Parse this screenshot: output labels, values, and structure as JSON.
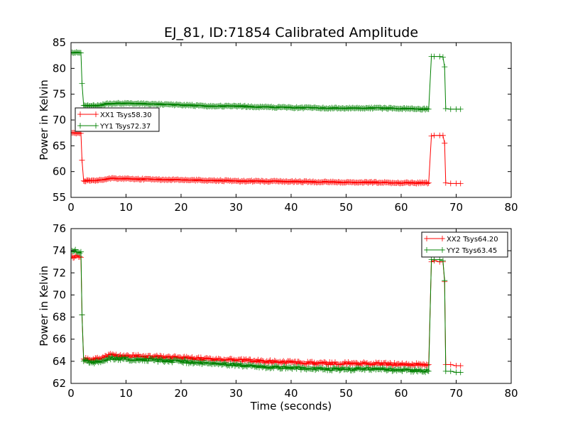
{
  "chart_data": [
    {
      "type": "line",
      "title": "EJ_81, ID:71854 Calibrated Amplitude",
      "xlabel": "",
      "ylabel": "Power in Kelvin",
      "xlim": [
        0,
        80
      ],
      "ylim": [
        55,
        85
      ],
      "xticks": [
        "0",
        "10",
        "20",
        "30",
        "40",
        "50",
        "60",
        "70",
        "80"
      ],
      "yticks": [
        "55",
        "60",
        "65",
        "70",
        "75",
        "80",
        "85"
      ],
      "grid": false,
      "legend_position": "center-left",
      "series": [
        {
          "name": "XX1 Tsys58.30",
          "color": "#ff0000",
          "marker": "+",
          "points": [
            [
              0.2,
              67.5
            ],
            [
              1.8,
              67.4
            ],
            [
              2.0,
              62.2
            ],
            [
              2.3,
              58.2
            ],
            [
              5,
              58.3
            ],
            [
              7,
              58.7
            ],
            [
              10,
              58.6
            ],
            [
              15,
              58.5
            ],
            [
              20,
              58.4
            ],
            [
              25,
              58.3
            ],
            [
              30,
              58.2
            ],
            [
              35,
              58.1
            ],
            [
              40,
              58.1
            ],
            [
              45,
              58.0
            ],
            [
              50,
              57.9
            ],
            [
              55,
              57.9
            ],
            [
              60,
              57.8
            ],
            [
              65.0,
              57.8
            ],
            [
              65.5,
              66.9
            ],
            [
              66,
              67.0
            ],
            [
              67,
              67.0
            ],
            [
              67.6,
              67.0
            ],
            [
              67.9,
              65.5
            ],
            [
              68.1,
              57.8
            ],
            [
              69,
              57.7
            ],
            [
              70,
              57.7
            ],
            [
              70.8,
              57.7
            ]
          ]
        },
        {
          "name": "YY1 Tsys72.37",
          "color": "#008000",
          "marker": "+",
          "points": [
            [
              0.2,
              83.1
            ],
            [
              1.8,
              83.0
            ],
            [
              2.0,
              77.1
            ],
            [
              2.3,
              72.8
            ],
            [
              5,
              72.8
            ],
            [
              7,
              73.2
            ],
            [
              10,
              73.2
            ],
            [
              15,
              73.1
            ],
            [
              20,
              72.9
            ],
            [
              25,
              72.7
            ],
            [
              30,
              72.7
            ],
            [
              35,
              72.5
            ],
            [
              40,
              72.4
            ],
            [
              45,
              72.3
            ],
            [
              50,
              72.3
            ],
            [
              55,
              72.3
            ],
            [
              60,
              72.2
            ],
            [
              65.0,
              72.1
            ],
            [
              65.5,
              82.3
            ],
            [
              66,
              82.3
            ],
            [
              67,
              82.3
            ],
            [
              67.6,
              82.2
            ],
            [
              67.9,
              80.3
            ],
            [
              68.1,
              72.2
            ],
            [
              69,
              72.1
            ],
            [
              70,
              72.1
            ],
            [
              70.8,
              72.1
            ]
          ]
        }
      ]
    },
    {
      "type": "line",
      "title": "",
      "xlabel": "Time (seconds)",
      "ylabel": "Power in Kelvin",
      "xlim": [
        0,
        80
      ],
      "ylim": [
        62,
        76
      ],
      "xticks": [
        "0",
        "10",
        "20",
        "30",
        "40",
        "50",
        "60",
        "70",
        "80"
      ],
      "yticks": [
        "62",
        "64",
        "66",
        "68",
        "70",
        "72",
        "74",
        "76"
      ],
      "grid": false,
      "legend_position": "top-right",
      "series": [
        {
          "name": "XX2 Tsys64.20",
          "color": "#ff0000",
          "marker": "+",
          "points": [
            [
              0.2,
              73.5
            ],
            [
              1.8,
              73.4
            ],
            [
              2.0,
              68.2
            ],
            [
              2.3,
              64.2
            ],
            [
              5,
              64.2
            ],
            [
              7,
              64.6
            ],
            [
              10,
              64.5
            ],
            [
              15,
              64.4
            ],
            [
              20,
              64.3
            ],
            [
              25,
              64.2
            ],
            [
              30,
              64.1
            ],
            [
              35,
              64.0
            ],
            [
              40,
              63.9
            ],
            [
              45,
              63.8
            ],
            [
              50,
              63.8
            ],
            [
              55,
              63.8
            ],
            [
              60,
              63.7
            ],
            [
              65.0,
              63.7
            ],
            [
              65.5,
              73.0
            ],
            [
              66,
              73.1
            ],
            [
              67,
              73.0
            ],
            [
              67.6,
              73.0
            ],
            [
              67.9,
              71.2
            ],
            [
              68.1,
              63.7
            ],
            [
              69,
              63.7
            ],
            [
              70,
              63.6
            ],
            [
              70.8,
              63.6
            ]
          ]
        },
        {
          "name": "YY2 Tsys63.45",
          "color": "#008000",
          "marker": "+",
          "points": [
            [
              0.2,
              74.0
            ],
            [
              1.8,
              73.9
            ],
            [
              2.0,
              68.2
            ],
            [
              2.3,
              64.0
            ],
            [
              5,
              63.9
            ],
            [
              7,
              64.3
            ],
            [
              10,
              64.2
            ],
            [
              15,
              64.1
            ],
            [
              20,
              64.0
            ],
            [
              25,
              63.8
            ],
            [
              30,
              63.7
            ],
            [
              35,
              63.5
            ],
            [
              40,
              63.4
            ],
            [
              45,
              63.3
            ],
            [
              50,
              63.3
            ],
            [
              55,
              63.3
            ],
            [
              60,
              63.2
            ],
            [
              65.0,
              63.1
            ],
            [
              65.5,
              73.2
            ],
            [
              66,
              73.2
            ],
            [
              67,
              73.2
            ],
            [
              67.6,
              73.1
            ],
            [
              67.9,
              71.3
            ],
            [
              68.1,
              63.1
            ],
            [
              69,
              63.1
            ],
            [
              70,
              63.0
            ],
            [
              70.8,
              63.0
            ]
          ]
        }
      ]
    }
  ]
}
